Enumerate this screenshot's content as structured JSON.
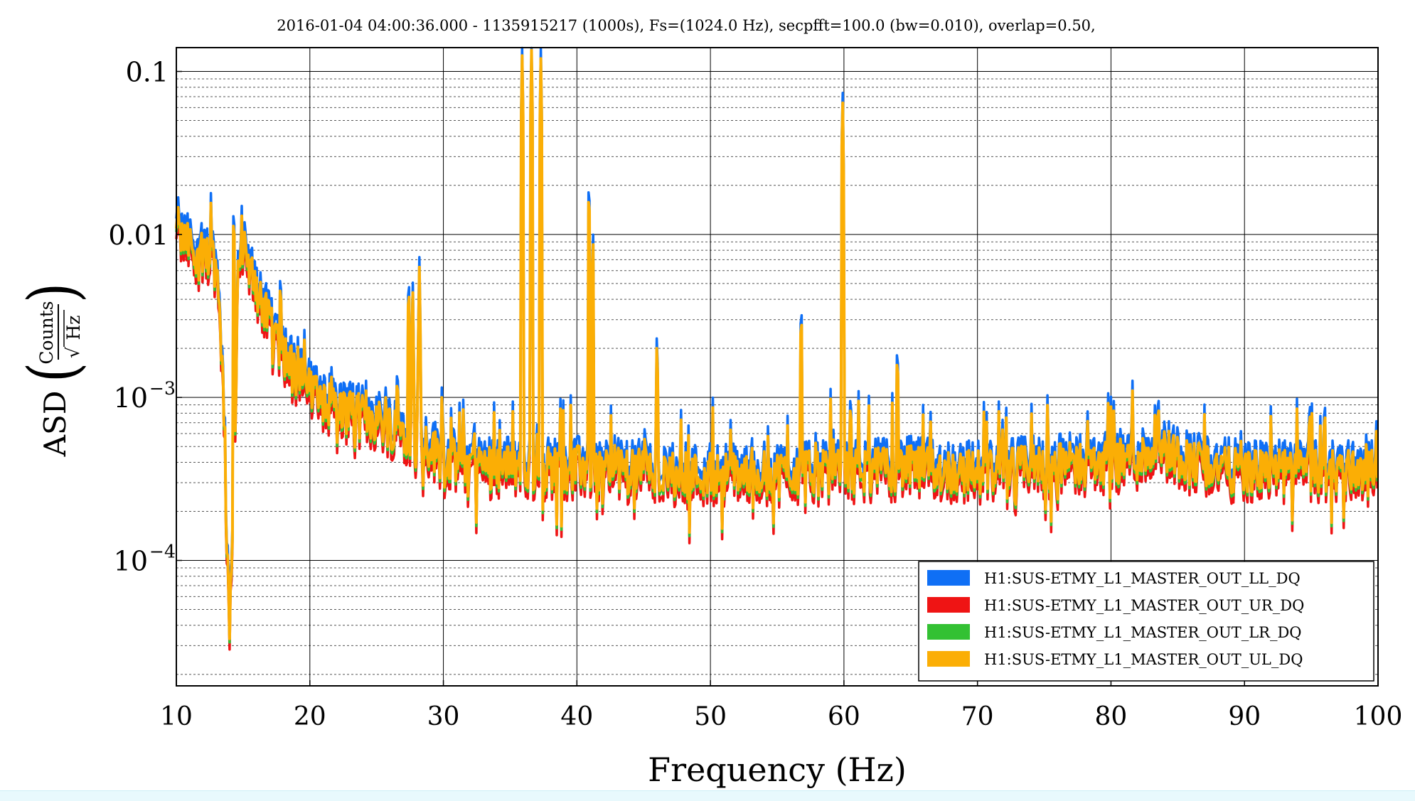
{
  "chart_data": {
    "type": "line",
    "title": "2016-01-04 04:00:36.000 - 1135915217 (1000s), Fs=(1024.0 Hz), secpfft=100.0 (bw=0.010), overlap=0.50,",
    "xlabel": "Frequency (Hz)",
    "ylabel": {
      "prefix": "ASD",
      "numerator": "Counts",
      "denominator": "Hz"
    },
    "xlim": [
      10,
      100
    ],
    "ylim": [
      1.7e-05,
      0.14
    ],
    "yscale": "log",
    "grid": "major solid, minor dotted (y)",
    "legend_position": "lower-right",
    "x_ticks": [
      10,
      20,
      30,
      40,
      50,
      60,
      70,
      80,
      90,
      100
    ],
    "y_ticks": [
      {
        "value": 0.1,
        "mantissa": "0.1",
        "exp": ""
      },
      {
        "value": 0.01,
        "mantissa": "0.01",
        "exp": ""
      },
      {
        "value": 0.001,
        "mantissa": "10",
        "exp": "−3"
      },
      {
        "value": 0.0001,
        "mantissa": "10",
        "exp": "−4"
      }
    ],
    "baseline": [
      [
        10.0,
        0.0095
      ],
      [
        11.0,
        0.0085
      ],
      [
        12.0,
        0.0075
      ],
      [
        12.8,
        0.0072
      ],
      [
        13.2,
        0.0045
      ],
      [
        13.5,
        0.0011
      ],
      [
        13.8,
        0.00012
      ],
      [
        14.0,
        4e-05
      ],
      [
        14.3,
        0.0002
      ],
      [
        14.6,
        0.006
      ],
      [
        15.0,
        0.0085
      ],
      [
        16.0,
        0.0045
      ],
      [
        17.0,
        0.0028
      ],
      [
        18.0,
        0.0019
      ],
      [
        19.0,
        0.0014
      ],
      [
        20.0,
        0.0011
      ],
      [
        22.0,
        0.00085
      ],
      [
        25.0,
        0.00072
      ],
      [
        28.0,
        0.00058
      ],
      [
        30.0,
        0.00042
      ],
      [
        33.0,
        0.00038
      ],
      [
        36.0,
        0.00037
      ],
      [
        40.0,
        0.00037
      ],
      [
        42.0,
        0.00036
      ],
      [
        45.0,
        0.00036
      ],
      [
        48.0,
        0.00033
      ],
      [
        50.0,
        0.00034
      ],
      [
        55.0,
        0.00034
      ],
      [
        60.0,
        0.00035
      ],
      [
        62.0,
        0.00036
      ],
      [
        65.0,
        0.00037
      ],
      [
        68.0,
        0.00035
      ],
      [
        70.0,
        0.00035
      ],
      [
        72.0,
        0.00036
      ],
      [
        75.0,
        0.00038
      ],
      [
        80.0,
        0.0004
      ],
      [
        82.0,
        0.00042
      ],
      [
        84.0,
        0.00048
      ],
      [
        86.0,
        0.0004
      ],
      [
        88.0,
        0.00037
      ],
      [
        90.0,
        0.00035
      ],
      [
        95.0,
        0.00035
      ],
      [
        100.0,
        0.00036
      ]
    ],
    "peaks": [
      [
        10.15,
        0.016
      ],
      [
        12.6,
        0.017
      ],
      [
        14.3,
        0.015
      ],
      [
        14.9,
        0.013
      ],
      [
        17.8,
        0.006
      ],
      [
        20.4,
        0.0018
      ],
      [
        21.6,
        0.0016
      ],
      [
        23.0,
        0.0013
      ],
      [
        24.2,
        0.0012
      ],
      [
        25.7,
        0.0012
      ],
      [
        26.6,
        0.0012
      ],
      [
        27.4,
        0.0055
      ],
      [
        27.7,
        0.0048
      ],
      [
        28.2,
        0.0063
      ],
      [
        29.9,
        0.0012
      ],
      [
        31.2,
        0.00088
      ],
      [
        32.3,
        0.0008
      ],
      [
        33.8,
        0.00081
      ],
      [
        35.2,
        0.00082
      ],
      [
        35.9,
        0.125
      ],
      [
        36.6,
        0.135
      ],
      [
        37.3,
        0.12
      ],
      [
        40.9,
        0.021
      ],
      [
        41.2,
        0.0104
      ],
      [
        44.9,
        0.00062
      ],
      [
        46.0,
        0.0024
      ],
      [
        56.8,
        0.0037
      ],
      [
        59.0,
        0.00098
      ],
      [
        59.9,
        0.07
      ],
      [
        60.5,
        0.0011
      ],
      [
        61.1,
        0.00095
      ],
      [
        64.0,
        0.0021
      ],
      [
        71.6,
        0.00082
      ],
      [
        81.6,
        0.0012
      ],
      [
        96.0,
        0.001
      ],
      [
        100.0,
        0.00055
      ]
    ],
    "series": [
      {
        "name": "H1:SUS-ETMY_L1_MASTER_OUT_LL_DQ",
        "color": "#0f6ff5",
        "scale": 1.15
      },
      {
        "name": "H1:SUS-ETMY_L1_MASTER_OUT_UR_DQ",
        "color": "#ef1414",
        "scale": 0.86
      },
      {
        "name": "H1:SUS-ETMY_L1_MASTER_OUT_LR_DQ",
        "color": "#33c133",
        "scale": 0.95
      },
      {
        "name": "H1:SUS-ETMY_L1_MASTER_OUT_UL_DQ",
        "color": "#fbae05",
        "scale": 1.0
      }
    ]
  }
}
